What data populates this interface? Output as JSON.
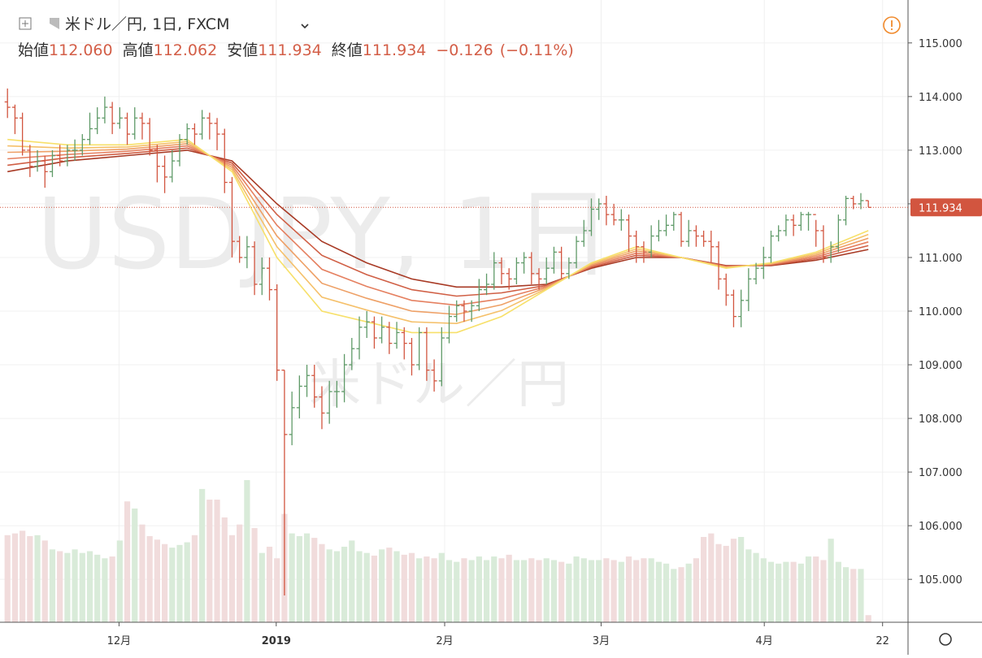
{
  "chart_data": {
    "type": "ohlc",
    "header": {
      "symbol": "米ドル／円, 1日, FXCM",
      "open_label": "始値",
      "open": "112.060",
      "high_label": "高値",
      "high": "112.062",
      "low_label": "安値",
      "low": "111.934",
      "close_label": "終値",
      "close": "111.934",
      "change": "−0.126",
      "change_pct": "(−0.11%)"
    },
    "watermark": "USDJPY, 1日",
    "watermark_sub": "米ドル／円",
    "up_color": "#5f9a68",
    "down_color": "#d2553f",
    "volume_up_color": "#d9ebd9",
    "volume_down_color": "#f1dcdc",
    "ylim": [
      104.2,
      115.8
    ],
    "yticks": [
      {
        "value": 105,
        "label": "105.000"
      },
      {
        "value": 106,
        "label": "106.000"
      },
      {
        "value": 107,
        "label": "107.000"
      },
      {
        "value": 108,
        "label": "108.000"
      },
      {
        "value": 109,
        "label": "109.000"
      },
      {
        "value": 110,
        "label": "110.000"
      },
      {
        "value": 111,
        "label": "111.000"
      },
      {
        "value": 112,
        "label": "112.000"
      },
      {
        "value": 113,
        "label": "113.000"
      },
      {
        "value": 114,
        "label": "114.000"
      },
      {
        "value": 115,
        "label": "115.000"
      }
    ],
    "xlim": [
      -1,
      120.3
    ],
    "xticks": [
      {
        "value": 14.9,
        "label": "12月"
      },
      {
        "value": 35.9,
        "label": "2019"
      },
      {
        "value": 58.4,
        "label": "2月"
      },
      {
        "value": 79.3,
        "label": "3月"
      },
      {
        "value": 101.1,
        "label": "4月"
      },
      {
        "value": 116.9,
        "label": "22"
      }
    ],
    "grid": true,
    "last_price": {
      "value": 111.934,
      "label": "111.934"
    },
    "ohlc": [
      [
        113.9,
        114.15,
        113.6,
        113.8
      ],
      [
        113.8,
        113.85,
        113.3,
        113.6
      ],
      [
        113.6,
        113.7,
        112.9,
        113.0
      ],
      [
        113.0,
        113.1,
        112.5,
        112.7
      ],
      [
        112.7,
        113.0,
        112.6,
        112.8
      ],
      [
        112.8,
        112.9,
        112.3,
        112.6
      ],
      [
        112.6,
        113.0,
        112.5,
        112.9
      ],
      [
        112.9,
        113.1,
        112.7,
        112.8
      ],
      [
        112.8,
        113.1,
        112.7,
        113.0
      ],
      [
        113.0,
        113.2,
        112.8,
        113.0
      ],
      [
        113.0,
        113.3,
        112.9,
        113.2
      ],
      [
        113.2,
        113.7,
        113.1,
        113.4
      ],
      [
        113.4,
        113.8,
        113.3,
        113.6
      ],
      [
        113.6,
        114.0,
        113.5,
        113.8
      ],
      [
        113.8,
        113.9,
        113.3,
        113.5
      ],
      [
        113.5,
        113.8,
        113.4,
        113.6
      ],
      [
        113.6,
        113.7,
        113.1,
        113.3
      ],
      [
        113.3,
        113.8,
        113.2,
        113.6
      ],
      [
        113.6,
        113.7,
        113.2,
        113.5
      ],
      [
        113.5,
        113.6,
        112.9,
        113.0
      ],
      [
        113.0,
        113.1,
        112.4,
        112.7
      ],
      [
        112.7,
        112.9,
        112.2,
        112.5
      ],
      [
        112.5,
        113.0,
        112.4,
        112.8
      ],
      [
        112.8,
        113.3,
        112.7,
        113.2
      ],
      [
        113.2,
        113.5,
        113.1,
        113.4
      ],
      [
        113.4,
        113.5,
        113.1,
        113.3
      ],
      [
        113.3,
        113.75,
        113.2,
        113.6
      ],
      [
        113.6,
        113.7,
        113.2,
        113.5
      ],
      [
        113.5,
        113.6,
        113.0,
        113.3
      ],
      [
        113.3,
        113.4,
        112.2,
        112.4
      ],
      [
        112.4,
        112.5,
        111.0,
        111.3
      ],
      [
        111.3,
        111.4,
        110.9,
        111.0
      ],
      [
        111.0,
        111.4,
        110.8,
        111.2
      ],
      [
        111.2,
        111.3,
        110.3,
        110.5
      ],
      [
        110.5,
        111.0,
        110.3,
        110.8
      ],
      [
        110.8,
        111.0,
        110.2,
        110.4
      ],
      [
        110.4,
        110.5,
        108.7,
        108.9
      ],
      [
        108.9,
        108.9,
        104.7,
        107.7
      ],
      [
        107.7,
        108.5,
        107.5,
        108.2
      ],
      [
        108.2,
        108.8,
        108.0,
        108.6
      ],
      [
        108.6,
        109.0,
        108.4,
        108.8
      ],
      [
        108.8,
        109.0,
        108.2,
        108.4
      ],
      [
        108.4,
        108.6,
        107.8,
        108.1
      ],
      [
        108.1,
        108.7,
        107.9,
        108.5
      ],
      [
        108.5,
        108.7,
        108.2,
        108.5
      ],
      [
        108.5,
        109.2,
        108.3,
        109.0
      ],
      [
        109.0,
        109.5,
        108.9,
        109.3
      ],
      [
        109.3,
        109.9,
        109.1,
        109.7
      ],
      [
        109.7,
        110.0,
        109.5,
        109.8
      ],
      [
        109.8,
        109.9,
        109.3,
        109.5
      ],
      [
        109.5,
        109.9,
        109.4,
        109.7
      ],
      [
        109.7,
        109.8,
        109.2,
        109.4
      ],
      [
        109.4,
        109.8,
        109.3,
        109.6
      ],
      [
        109.6,
        109.7,
        109.1,
        109.4
      ],
      [
        109.4,
        109.5,
        108.8,
        109.0
      ],
      [
        109.0,
        109.7,
        108.9,
        109.6
      ],
      [
        109.6,
        109.7,
        108.7,
        108.9
      ],
      [
        108.9,
        109.1,
        108.5,
        108.7
      ],
      [
        108.7,
        109.7,
        108.6,
        109.5
      ],
      [
        109.5,
        110.1,
        109.4,
        109.9
      ],
      [
        109.9,
        110.2,
        109.8,
        110.1
      ],
      [
        110.1,
        110.2,
        109.8,
        110.0
      ],
      [
        110.0,
        110.2,
        109.8,
        110.1
      ],
      [
        110.1,
        110.6,
        110.0,
        110.4
      ],
      [
        110.4,
        110.7,
        110.3,
        110.5
      ],
      [
        110.5,
        111.1,
        110.4,
        110.9
      ],
      [
        110.9,
        111.0,
        110.5,
        110.7
      ],
      [
        110.7,
        110.8,
        110.4,
        110.6
      ],
      [
        110.6,
        111.0,
        110.5,
        110.9
      ],
      [
        110.9,
        111.1,
        110.7,
        111.0
      ],
      [
        111.0,
        111.1,
        110.5,
        110.7
      ],
      [
        110.7,
        110.8,
        110.4,
        110.6
      ],
      [
        110.6,
        111.0,
        110.5,
        110.8
      ],
      [
        110.8,
        111.2,
        110.7,
        111.1
      ],
      [
        111.1,
        111.2,
        110.6,
        110.7
      ],
      [
        110.7,
        111.0,
        110.6,
        110.9
      ],
      [
        110.9,
        111.4,
        110.8,
        111.3
      ],
      [
        111.3,
        111.7,
        111.2,
        111.5
      ],
      [
        111.5,
        112.1,
        111.4,
        111.9
      ],
      [
        111.9,
        112.1,
        111.7,
        112.0
      ],
      [
        112.0,
        112.15,
        111.6,
        111.8
      ],
      [
        111.8,
        112.0,
        111.6,
        111.7
      ],
      [
        111.7,
        111.9,
        111.5,
        111.7
      ],
      [
        111.7,
        111.8,
        111.1,
        111.4
      ],
      [
        111.4,
        111.5,
        110.9,
        111.2
      ],
      [
        111.2,
        111.3,
        110.9,
        111.1
      ],
      [
        111.1,
        111.6,
        111.0,
        111.4
      ],
      [
        111.4,
        111.7,
        111.3,
        111.5
      ],
      [
        111.5,
        111.8,
        111.4,
        111.6
      ],
      [
        111.6,
        111.85,
        111.5,
        111.8
      ],
      [
        111.8,
        111.85,
        111.2,
        111.3
      ],
      [
        111.3,
        111.7,
        111.2,
        111.5
      ],
      [
        111.5,
        111.6,
        111.2,
        111.4
      ],
      [
        111.4,
        111.5,
        111.2,
        111.3
      ],
      [
        111.3,
        111.5,
        110.9,
        111.2
      ],
      [
        111.2,
        111.3,
        110.4,
        110.6
      ],
      [
        110.6,
        110.7,
        110.1,
        110.3
      ],
      [
        110.3,
        110.4,
        109.7,
        109.9
      ],
      [
        109.9,
        110.4,
        109.7,
        110.2
      ],
      [
        110.2,
        110.8,
        110.0,
        110.6
      ],
      [
        110.6,
        110.9,
        110.5,
        110.8
      ],
      [
        110.8,
        111.2,
        110.6,
        111.0
      ],
      [
        111.0,
        111.5,
        110.9,
        111.4
      ],
      [
        111.4,
        111.6,
        111.3,
        111.5
      ],
      [
        111.5,
        111.8,
        111.4,
        111.7
      ],
      [
        111.7,
        111.8,
        111.4,
        111.6
      ],
      [
        111.6,
        111.85,
        111.5,
        111.8
      ],
      [
        111.8,
        111.85,
        111.5,
        111.8
      ],
      [
        111.8,
        111.7,
        111.2,
        111.5
      ],
      [
        111.5,
        111.6,
        110.9,
        111.0
      ],
      [
        111.0,
        111.3,
        110.9,
        111.2
      ],
      [
        111.2,
        111.8,
        111.1,
        111.7
      ],
      [
        111.7,
        112.15,
        111.6,
        112.1
      ],
      [
        112.1,
        112.15,
        111.9,
        112.0
      ],
      [
        112.0,
        112.2,
        111.9,
        112.06
      ],
      [
        112.06,
        112.062,
        111.934,
        111.934
      ]
    ],
    "volume": [
      98,
      100,
      103,
      97,
      98,
      92,
      82,
      80,
      78,
      82,
      78,
      80,
      76,
      72,
      74,
      92,
      136,
      128,
      110,
      97,
      93,
      88,
      84,
      87,
      90,
      98,
      150,
      138,
      138,
      118,
      98,
      110,
      160,
      106,
      78,
      85,
      72,
      122,
      100,
      97,
      100,
      95,
      88,
      82,
      80,
      85,
      92,
      80,
      78,
      75,
      82,
      84,
      80,
      76,
      78,
      72,
      74,
      72,
      78,
      70,
      68,
      72,
      70,
      74,
      70,
      74,
      72,
      76,
      70,
      70,
      72,
      70,
      72,
      70,
      68,
      66,
      74,
      72,
      70,
      70,
      72,
      70,
      68,
      74,
      70,
      72,
      72,
      68,
      66,
      60,
      62,
      66,
      72,
      96,
      100,
      88,
      86,
      94,
      96,
      82,
      78,
      72,
      68,
      66,
      68,
      68,
      66,
      74,
      74,
      70,
      94,
      68,
      62,
      60,
      60,
      8
    ],
    "ribbon_x": [
      0,
      8,
      16,
      24,
      30,
      36,
      42,
      48,
      54,
      60,
      66,
      72,
      78,
      84,
      90,
      96,
      102,
      108,
      115
    ],
    "ribbons": [
      {
        "color": "#a83a25",
        "values": [
          112.6,
          112.8,
          112.9,
          113.0,
          112.8,
          112.0,
          111.3,
          110.9,
          110.6,
          110.45,
          110.45,
          110.5,
          110.8,
          111.0,
          111.0,
          110.85,
          110.85,
          110.95,
          111.15
        ]
      },
      {
        "color": "#d05f45",
        "values": [
          112.72,
          112.86,
          112.94,
          113.04,
          112.76,
          111.8,
          111.04,
          110.68,
          110.4,
          110.28,
          110.34,
          110.48,
          110.82,
          111.04,
          111.0,
          110.84,
          110.86,
          110.98,
          111.22
        ]
      },
      {
        "color": "#e58060",
        "values": [
          112.84,
          112.92,
          112.98,
          113.08,
          112.72,
          111.6,
          110.78,
          110.46,
          110.2,
          110.11,
          110.23,
          110.46,
          110.84,
          111.08,
          111.0,
          110.83,
          110.87,
          111.01,
          111.29
        ]
      },
      {
        "color": "#eea066",
        "values": [
          112.96,
          112.98,
          113.02,
          113.12,
          112.68,
          111.4,
          110.52,
          110.24,
          110.0,
          109.94,
          110.12,
          110.44,
          110.86,
          111.12,
          111.0,
          110.82,
          110.88,
          111.04,
          111.36
        ]
      },
      {
        "color": "#f5c06a",
        "values": [
          113.08,
          113.04,
          113.06,
          113.16,
          112.64,
          111.2,
          110.26,
          110.02,
          109.8,
          109.77,
          110.01,
          110.42,
          110.88,
          111.16,
          111.0,
          110.81,
          110.89,
          111.07,
          111.43
        ]
      },
      {
        "color": "#f7e06a",
        "values": [
          113.2,
          113.1,
          113.1,
          113.2,
          112.6,
          111.0,
          110.0,
          109.8,
          109.6,
          109.6,
          109.9,
          110.4,
          110.9,
          111.2,
          111.0,
          110.8,
          110.9,
          111.1,
          111.5
        ]
      }
    ]
  }
}
